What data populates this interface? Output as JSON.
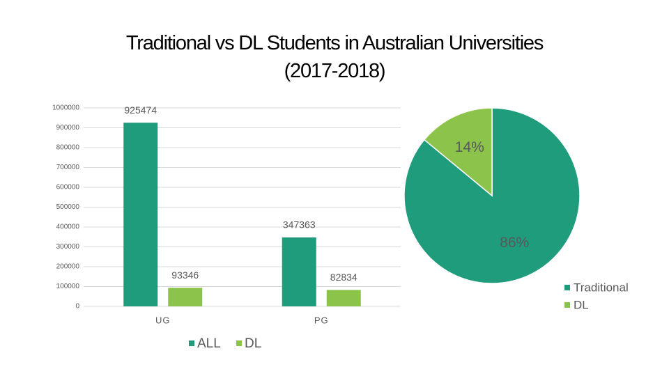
{
  "title": "Traditional vs DL Students in Australian Universities (2017-2018)",
  "chart_data": [
    {
      "type": "bar",
      "categories": [
        "UG",
        "PG"
      ],
      "series": [
        {
          "name": "ALL",
          "color": "#1e9c7c",
          "values": [
            925474,
            347363
          ]
        },
        {
          "name": "DL",
          "color": "#8cc34b",
          "values": [
            93346,
            82834
          ]
        }
      ],
      "ylim": [
        0,
        1000000
      ],
      "yticks": [
        0,
        100000,
        200000,
        300000,
        400000,
        500000,
        600000,
        700000,
        800000,
        900000,
        1000000
      ],
      "grid": true,
      "legend": "bottom"
    },
    {
      "type": "pie",
      "categories": [
        "Traditional",
        "DL"
      ],
      "values": [
        86,
        14
      ],
      "value_labels": [
        "86%",
        "14%"
      ],
      "colors": [
        "#1e9c7c",
        "#8cc34b"
      ],
      "legend": "right"
    }
  ]
}
